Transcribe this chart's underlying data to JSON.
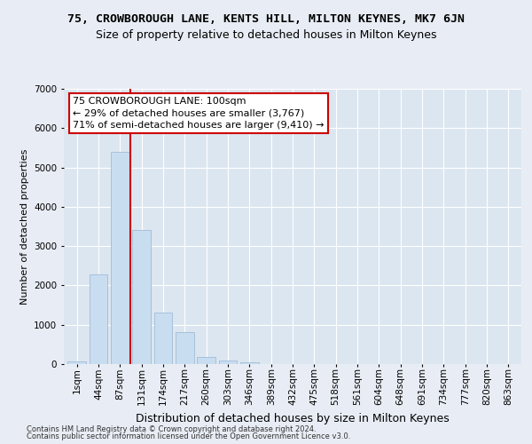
{
  "title": "75, CROWBOROUGH LANE, KENTS HILL, MILTON KEYNES, MK7 6JN",
  "subtitle": "Size of property relative to detached houses in Milton Keynes",
  "xlabel": "Distribution of detached houses by size in Milton Keynes",
  "ylabel": "Number of detached properties",
  "footer_line1": "Contains HM Land Registry data © Crown copyright and database right 2024.",
  "footer_line2": "Contains public sector information licensed under the Open Government Licence v3.0.",
  "categories": [
    "1sqm",
    "44sqm",
    "87sqm",
    "131sqm",
    "174sqm",
    "217sqm",
    "260sqm",
    "303sqm",
    "346sqm",
    "389sqm",
    "432sqm",
    "475sqm",
    "518sqm",
    "561sqm",
    "604sqm",
    "648sqm",
    "691sqm",
    "734sqm",
    "777sqm",
    "820sqm",
    "863sqm"
  ],
  "values": [
    60,
    2280,
    5400,
    3400,
    1320,
    820,
    190,
    100,
    50,
    10,
    5,
    2,
    1,
    0,
    0,
    0,
    0,
    0,
    0,
    0,
    0
  ],
  "bar_color": "#c9ddf0",
  "bar_edge_color": "#a0bcd8",
  "vline_x": 2.5,
  "vline_color": "#cc0000",
  "annotation_text": "75 CROWBOROUGH LANE: 100sqm\n← 29% of detached houses are smaller (3,767)\n71% of semi-detached houses are larger (9,410) →",
  "annotation_box_facecolor": "#ffffff",
  "annotation_box_edgecolor": "#cc0000",
  "ylim": [
    0,
    7000
  ],
  "yticks": [
    0,
    1000,
    2000,
    3000,
    4000,
    5000,
    6000,
    7000
  ],
  "bg_color": "#e8edf5",
  "plot_bg_color": "#dce6f0",
  "grid_color": "#ffffff",
  "title_fontsize": 9.5,
  "subtitle_fontsize": 9,
  "ylabel_fontsize": 8,
  "xlabel_fontsize": 9,
  "tick_fontsize": 7.5,
  "annot_fontsize": 8,
  "footer_fontsize": 6
}
